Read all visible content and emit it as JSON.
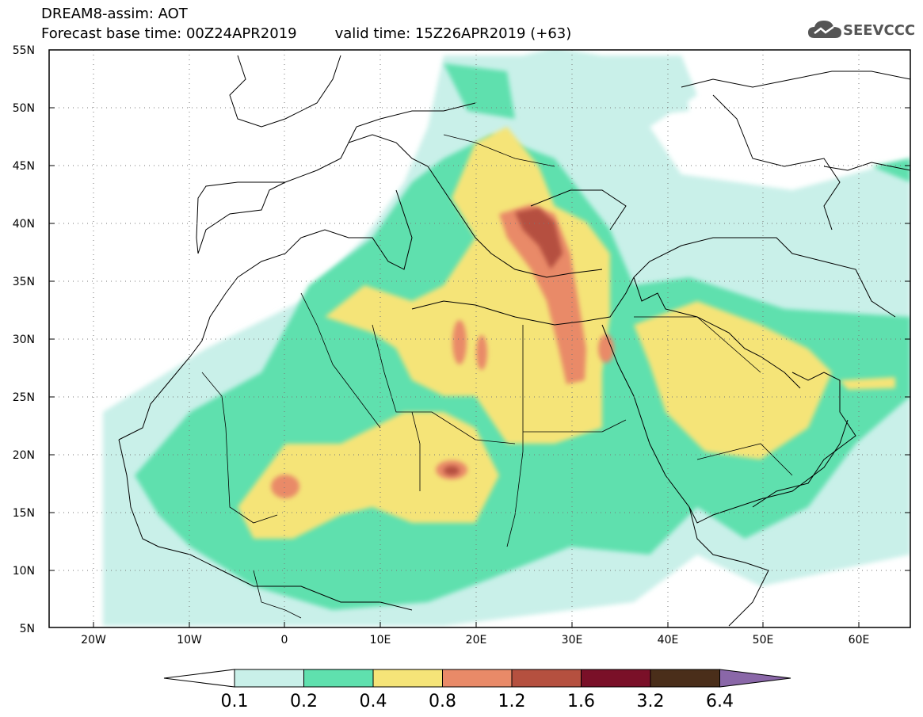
{
  "header": {
    "title": "DREAM8-assim: AOT",
    "base_time": "Forecast base time: 00Z24APR2019",
    "valid_time": "valid time: 15Z26APR2019 (+63)"
  },
  "logo": {
    "text": "SEEVCCC",
    "icon": "cloud-icon"
  },
  "map": {
    "lon_range": [
      -25,
      65
    ],
    "lat_range": [
      5,
      55
    ],
    "lat_labels": [
      "55N",
      "50N",
      "45N",
      "40N",
      "35N",
      "30N",
      "25N",
      "20N",
      "15N",
      "10N",
      "5N"
    ],
    "lon_labels": [
      "20W",
      "10W",
      "0",
      "10E",
      "20E",
      "30E",
      "40E",
      "50E",
      "60E"
    ],
    "grid": "dotted"
  },
  "colorbar": {
    "ticks": [
      "0.1",
      "0.2",
      "0.4",
      "0.8",
      "1.2",
      "1.6",
      "3.2",
      "6.4"
    ],
    "colors": [
      "#c9f0e9",
      "#5fe0ae",
      "#f5e478",
      "#e98a68",
      "#b5503f",
      "#7a1028",
      "#4a2e1a",
      "#8a67a8"
    ],
    "under_color": "#ffffff",
    "over_color": "#8a67a8"
  }
}
